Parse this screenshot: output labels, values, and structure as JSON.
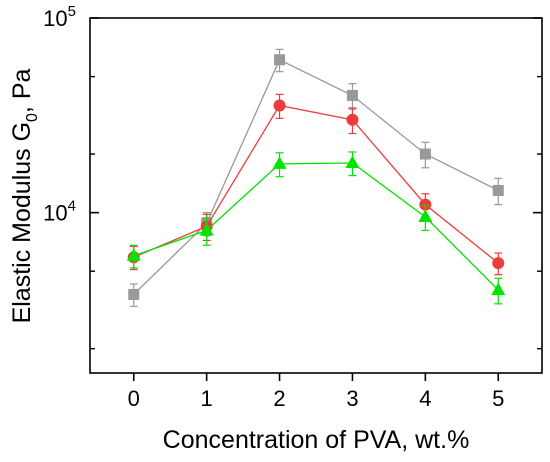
{
  "chart_data": {
    "type": "line",
    "xlabel": "Concentration of PVA, wt.%",
    "ylabel": "Elastic Modulus G",
    "ylabel_sub": "0",
    "ylabel_unit": ", Pa",
    "y_scale": "log",
    "xlim": [
      -0.6,
      5.6
    ],
    "ylim": [
      1500,
      100000
    ],
    "x_ticks": [
      0,
      1,
      2,
      3,
      4,
      5
    ],
    "x_tick_labels": [
      "0",
      "1",
      "2",
      "3",
      "4",
      "5"
    ],
    "y_major_ticks": [
      {
        "value": 10000,
        "base": "10",
        "exp": "4"
      },
      {
        "value": 100000,
        "base": "10",
        "exp": "5"
      }
    ],
    "y_minor_ticks": [
      2000,
      5000,
      20000,
      50000
    ],
    "grid": false,
    "legend": "none",
    "series": [
      {
        "color": "#999999",
        "marker": "square",
        "x": [
          0,
          1,
          2,
          3,
          4,
          5
        ],
        "values": [
          3800,
          8800,
          61000,
          40000,
          20000,
          13000
        ],
        "err": [
          500,
          1200,
          8000,
          6000,
          3000,
          2000
        ]
      },
      {
        "color": "#ee3b3b",
        "marker": "circle",
        "x": [
          0,
          1,
          2,
          3,
          4,
          5
        ],
        "values": [
          5900,
          8500,
          35500,
          30000,
          11000,
          5500
        ],
        "err": [
          800,
          1300,
          5000,
          4500,
          1500,
          700
        ]
      },
      {
        "color": "#00e400",
        "marker": "triangle",
        "x": [
          0,
          1,
          2,
          3,
          4,
          5
        ],
        "values": [
          6000,
          8100,
          17800,
          18000,
          9500,
          4000
        ],
        "err": [
          800,
          1300,
          2500,
          2500,
          1400,
          600
        ]
      }
    ]
  }
}
